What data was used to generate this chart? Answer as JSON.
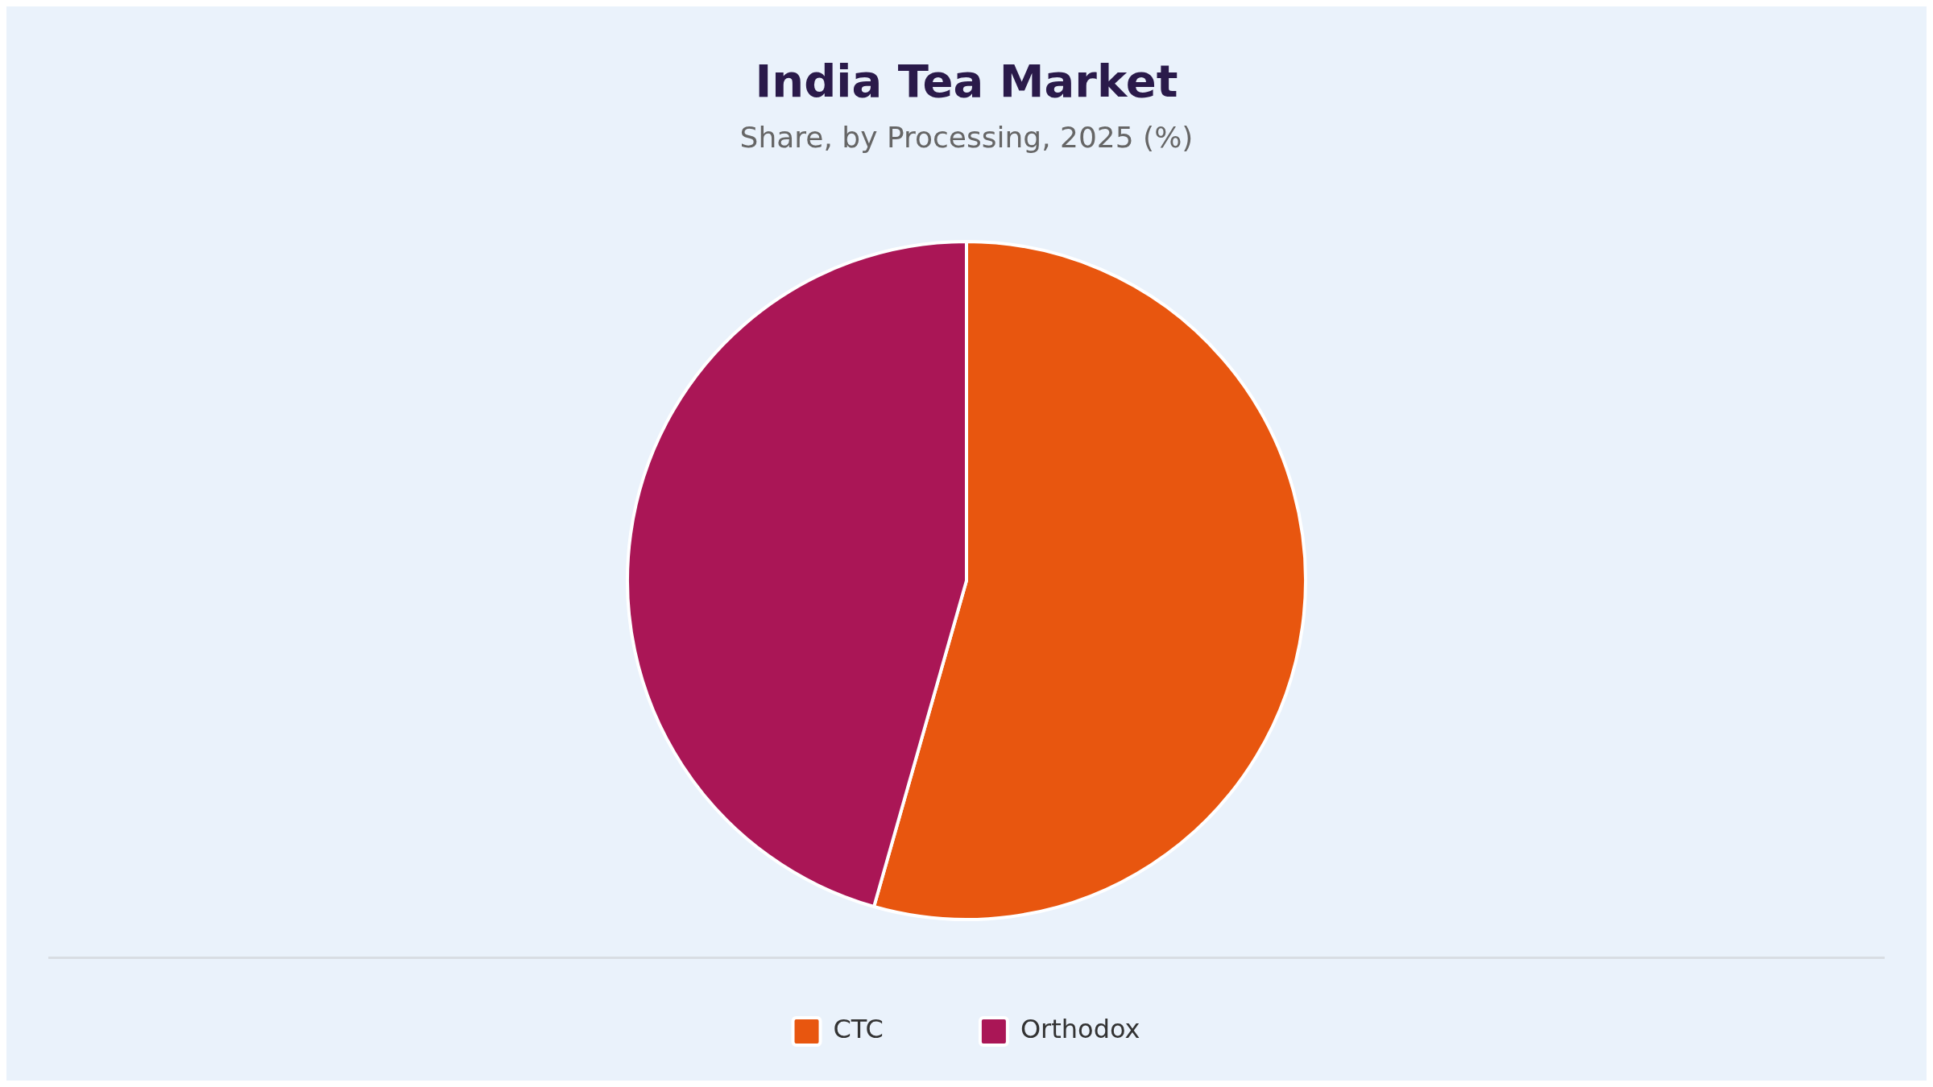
{
  "chart_data": {
    "type": "pie",
    "title": "India Tea Market",
    "subtitle": "Share, by Processing, 2025 (%)",
    "categories": [
      "CTC",
      "Orthodox"
    ],
    "values": [
      54.4,
      45.6
    ],
    "colors": [
      "#e8560f",
      "#aa1656"
    ],
    "legend": "bottom"
  }
}
